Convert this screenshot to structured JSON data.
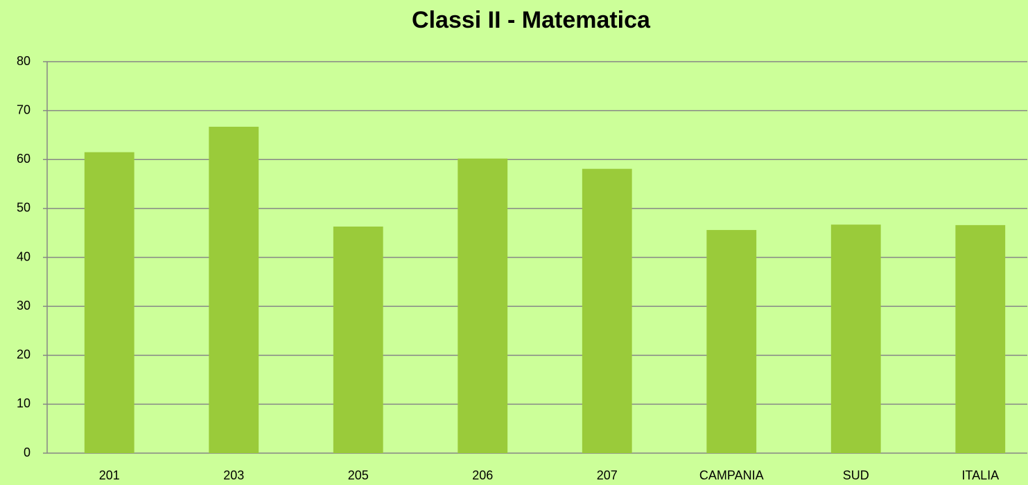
{
  "chart_data": {
    "type": "bar",
    "title": "Classi II - Matematica",
    "categories": [
      "201",
      "203",
      "205",
      "206",
      "207",
      "CAMPANIA",
      "SUD",
      "ITALIA"
    ],
    "values": [
      61.5,
      66.7,
      46.3,
      60.2,
      58.1,
      45.6,
      46.7,
      46.6
    ],
    "color": "#9acb3a",
    "ylim": [
      0,
      80
    ],
    "yticks": [
      0,
      10,
      20,
      30,
      40,
      50,
      60,
      70,
      80
    ],
    "grid": true
  }
}
